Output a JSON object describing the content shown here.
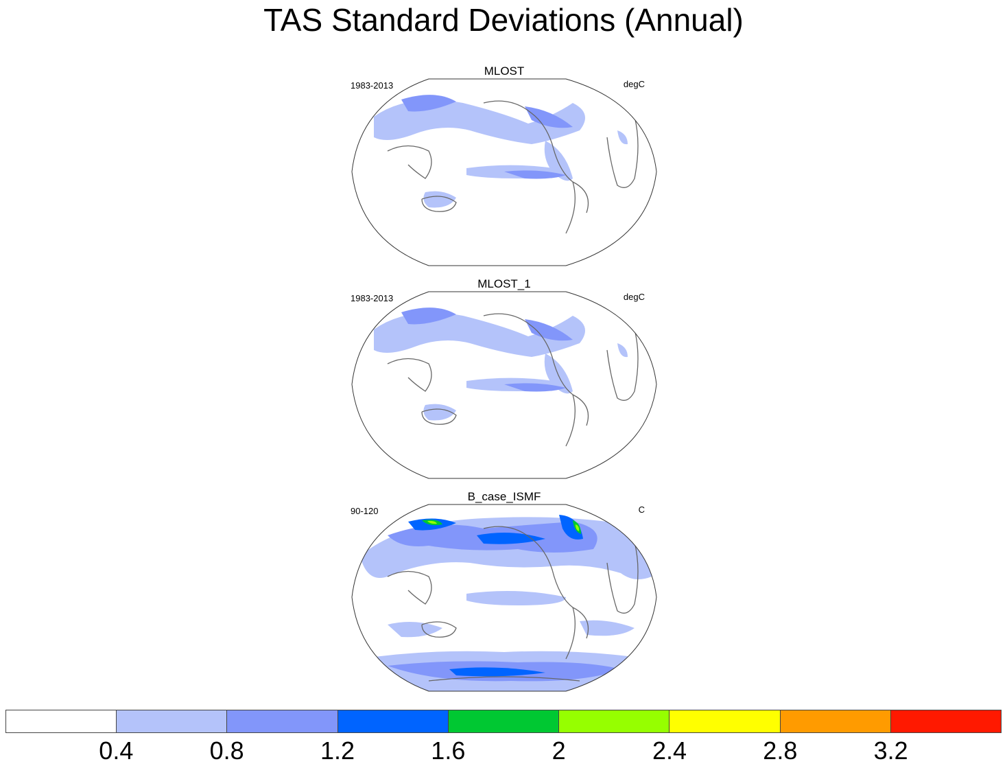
{
  "title": "TAS Standard Deviations (Annual)",
  "panels": [
    {
      "name": "MLOST",
      "left_label": "1983-2013",
      "right_label": "degC"
    },
    {
      "name": "MLOST_1",
      "left_label": "1983-2013",
      "right_label": "degC"
    },
    {
      "name": "B_case_ISMF",
      "left_label": "90-120",
      "right_label": "C"
    }
  ],
  "colorbar": {
    "colors": [
      "#ffffff",
      "#b4c3fa",
      "#8296fa",
      "#0064ff",
      "#00c832",
      "#96ff00",
      "#ffff00",
      "#ff9b00",
      "#ff1900"
    ],
    "labels": [
      "0.4",
      "0.8",
      "1.2",
      "1.6",
      "2",
      "2.4",
      "2.8",
      "3.2"
    ]
  }
}
